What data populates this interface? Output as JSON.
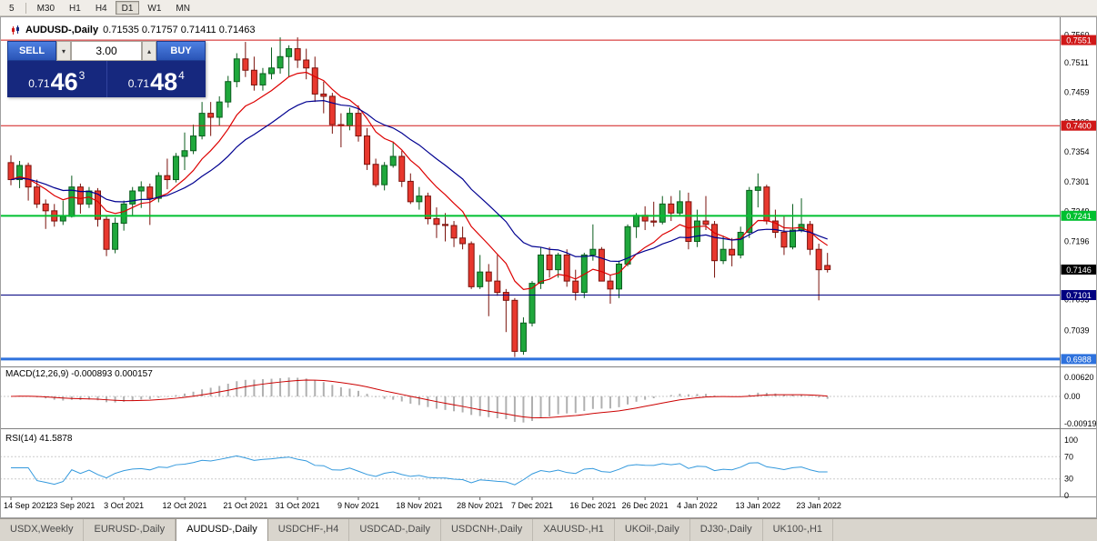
{
  "toolbar": {
    "timeframes": [
      "5",
      "M30",
      "H1",
      "H4",
      "D1",
      "W1",
      "MN"
    ],
    "active": "D1"
  },
  "chart_header": {
    "symbol_text": "AUDUSD-,Daily",
    "ohlc_text": "0.71535 0.71757 0.71411 0.71463"
  },
  "trade_panel": {
    "sell_label": "SELL",
    "buy_label": "BUY",
    "volume": "3.00",
    "icons": {
      "down": "▾",
      "up": "▴"
    },
    "bid": {
      "prefix": "0.71",
      "big": "46",
      "sup": "3"
    },
    "ask": {
      "prefix": "0.71",
      "big": "48",
      "sup": "4"
    }
  },
  "colors": {
    "up": "#1fa83c",
    "up_edge": "#0b5d1e",
    "down": "#e8382e",
    "down_edge": "#7a120c",
    "ma_fast": "#dd0000",
    "ma_slow": "#000090",
    "macd_hist": "#b0b0b0",
    "macd_signal": "#cc0000",
    "rsi_line": "#3399dd",
    "panel_navy": "#16287e",
    "button_blue": "#2a54b6"
  },
  "chart_data": {
    "type": "candlestick",
    "symbol": "AUDUSD-",
    "timeframe": "Daily",
    "last_ohlc": {
      "open": 0.71535,
      "high": 0.71757,
      "low": 0.71411,
      "close": 0.71463
    },
    "y_range": [
      0.6977,
      0.7577
    ],
    "current_price": {
      "label": "0.7146",
      "value": 0.71463,
      "color": "#000000"
    },
    "levels": [
      {
        "label": "0.7551",
        "value": 0.75512,
        "color": "#d01818",
        "width": 1
      },
      {
        "label": "0.7400",
        "value": 0.74002,
        "color": "#d01818",
        "width": 1
      },
      {
        "label": "0.7241",
        "value": 0.72412,
        "color": "#00c030",
        "width": 2
      },
      {
        "label": "0.7101",
        "value": 0.71013,
        "color": "#000080",
        "width": 1
      },
      {
        "label": "0.6988",
        "value": 0.69884,
        "color": "#2e72dd",
        "width": 3
      }
    ],
    "y_ticks": [
      {
        "label": "0.7560",
        "value": 0.756
      },
      {
        "label": "0.7511",
        "value": 0.7511
      },
      {
        "label": "0.7459",
        "value": 0.7459
      },
      {
        "label": "0.7406",
        "value": 0.7406
      },
      {
        "label": "0.7354",
        "value": 0.7354
      },
      {
        "label": "0.7301",
        "value": 0.7301
      },
      {
        "label": "0.7249",
        "value": 0.7249
      },
      {
        "label": "0.7196",
        "value": 0.7196
      },
      {
        "label": "0.7144",
        "value": 0.7144
      },
      {
        "label": "0.7093",
        "value": 0.7093
      },
      {
        "label": "0.7039",
        "value": 0.7039
      },
      {
        "label": "0.6986",
        "value": 0.6986
      }
    ],
    "x_labels": [
      {
        "text": "14 Sep 2021",
        "i": 0
      },
      {
        "text": "23 Sep 2021",
        "i": 7
      },
      {
        "text": "3 Oct 2021",
        "i": 13
      },
      {
        "text": "12 Oct 2021",
        "i": 20
      },
      {
        "text": "21 Oct 2021",
        "i": 27
      },
      {
        "text": "31 Oct 2021",
        "i": 33
      },
      {
        "text": "9 Nov 2021",
        "i": 40
      },
      {
        "text": "18 Nov 2021",
        "i": 47
      },
      {
        "text": "28 Nov 2021",
        "i": 54
      },
      {
        "text": "7 Dec 2021",
        "i": 60
      },
      {
        "text": "16 Dec 2021",
        "i": 67
      },
      {
        "text": "26 Dec 2021",
        "i": 73
      },
      {
        "text": "4 Jan 2022",
        "i": 79
      },
      {
        "text": "13 Jan 2022",
        "i": 86
      },
      {
        "text": "23 Jan 2022",
        "i": 93
      }
    ],
    "indicators": {
      "macd": {
        "label": "MACD(12,26,9) -0.000893 0.000157",
        "axis": [
          {
            "label": "0.00620",
            "value": 0.0062
          },
          {
            "label": "0.00",
            "value": 0
          },
          {
            "label": "-0.00919",
            "value": -0.00919
          }
        ]
      },
      "rsi": {
        "label": "RSI(14) 41.5878",
        "value": 41.5878,
        "axis": [
          {
            "label": "100",
            "value": 100
          },
          {
            "label": "70",
            "value": 70
          },
          {
            "label": "30",
            "value": 30
          },
          {
            "label": "0",
            "value": 0
          }
        ],
        "levels": [
          70,
          30
        ]
      }
    },
    "candles": [
      [
        0.7335,
        0.7348,
        0.7295,
        0.7305
      ],
      [
        0.7305,
        0.7338,
        0.729,
        0.733
      ],
      [
        0.733,
        0.7335,
        0.7268,
        0.7292
      ],
      [
        0.7292,
        0.7305,
        0.7255,
        0.7262
      ],
      [
        0.7262,
        0.727,
        0.7218,
        0.725
      ],
      [
        0.725,
        0.7262,
        0.7222,
        0.7232
      ],
      [
        0.7232,
        0.7268,
        0.7225,
        0.724
      ],
      [
        0.724,
        0.7312,
        0.7238,
        0.7292
      ],
      [
        0.7292,
        0.7298,
        0.7245,
        0.7262
      ],
      [
        0.7262,
        0.7292,
        0.7255,
        0.7285
      ],
      [
        0.7285,
        0.729,
        0.7222,
        0.7235
      ],
      [
        0.7235,
        0.7242,
        0.717,
        0.7182
      ],
      [
        0.7182,
        0.7238,
        0.7175,
        0.7228
      ],
      [
        0.7228,
        0.7268,
        0.7215,
        0.7262
      ],
      [
        0.7262,
        0.7292,
        0.724,
        0.7285
      ],
      [
        0.7285,
        0.7302,
        0.7255,
        0.7292
      ],
      [
        0.7292,
        0.7298,
        0.7225,
        0.7272
      ],
      [
        0.7272,
        0.7318,
        0.7265,
        0.7312
      ],
      [
        0.7312,
        0.7342,
        0.7288,
        0.7305
      ],
      [
        0.7305,
        0.7352,
        0.73,
        0.7346
      ],
      [
        0.7346,
        0.7388,
        0.7322,
        0.7356
      ],
      [
        0.7356,
        0.7402,
        0.735,
        0.7382
      ],
      [
        0.7382,
        0.7442,
        0.7376,
        0.7422
      ],
      [
        0.7422,
        0.7442,
        0.7382,
        0.7415
      ],
      [
        0.7415,
        0.7452,
        0.74,
        0.7442
      ],
      [
        0.7442,
        0.7488,
        0.7432,
        0.7478
      ],
      [
        0.7478,
        0.7528,
        0.7468,
        0.7518
      ],
      [
        0.7518,
        0.7548,
        0.7486,
        0.7498
      ],
      [
        0.7498,
        0.7522,
        0.7462,
        0.7472
      ],
      [
        0.7472,
        0.7502,
        0.7462,
        0.7492
      ],
      [
        0.7492,
        0.7538,
        0.7482,
        0.7502
      ],
      [
        0.7502,
        0.7556,
        0.7492,
        0.7522
      ],
      [
        0.7522,
        0.7542,
        0.7486,
        0.7536
      ],
      [
        0.7536,
        0.7556,
        0.7502,
        0.7516
      ],
      [
        0.7516,
        0.7536,
        0.7482,
        0.7502
      ],
      [
        0.7502,
        0.7522,
        0.7442,
        0.7456
      ],
      [
        0.7456,
        0.7478,
        0.7422,
        0.7452
      ],
      [
        0.7452,
        0.7458,
        0.7386,
        0.7402
      ],
      [
        0.7402,
        0.7422,
        0.7362,
        0.74
      ],
      [
        0.74,
        0.7432,
        0.7392,
        0.7422
      ],
      [
        0.7422,
        0.7436,
        0.7372,
        0.7382
      ],
      [
        0.7382,
        0.7396,
        0.7322,
        0.7332
      ],
      [
        0.7332,
        0.7342,
        0.7292,
        0.7296
      ],
      [
        0.7296,
        0.7336,
        0.7286,
        0.733
      ],
      [
        0.733,
        0.7372,
        0.7326,
        0.7346
      ],
      [
        0.7346,
        0.7356,
        0.7292,
        0.7302
      ],
      [
        0.7302,
        0.7316,
        0.7262,
        0.7266
      ],
      [
        0.7266,
        0.7292,
        0.7252,
        0.7276
      ],
      [
        0.7276,
        0.7282,
        0.7226,
        0.7236
      ],
      [
        0.7236,
        0.7256,
        0.7202,
        0.7226
      ],
      [
        0.7226,
        0.7246,
        0.7196,
        0.7224
      ],
      [
        0.7224,
        0.7232,
        0.7186,
        0.7202
      ],
      [
        0.7202,
        0.7222,
        0.7182,
        0.7192
      ],
      [
        0.7192,
        0.7196,
        0.7112,
        0.7116
      ],
      [
        0.7116,
        0.7172,
        0.7112,
        0.7142
      ],
      [
        0.7142,
        0.7156,
        0.7064,
        0.7126
      ],
      [
        0.7126,
        0.7172,
        0.71,
        0.7106
      ],
      [
        0.7106,
        0.7112,
        0.7036,
        0.7092
      ],
      [
        0.7092,
        0.7096,
        0.6992,
        0.7002
      ],
      [
        0.7002,
        0.7062,
        0.6996,
        0.7052
      ],
      [
        0.7052,
        0.7126,
        0.7046,
        0.7122
      ],
      [
        0.7122,
        0.7186,
        0.7112,
        0.7172
      ],
      [
        0.7172,
        0.7186,
        0.7132,
        0.7146
      ],
      [
        0.7146,
        0.7176,
        0.7132,
        0.7172
      ],
      [
        0.7172,
        0.7182,
        0.7116,
        0.7126
      ],
      [
        0.7126,
        0.7146,
        0.7092,
        0.7106
      ],
      [
        0.7106,
        0.7176,
        0.7096,
        0.7172
      ],
      [
        0.7172,
        0.7226,
        0.7162,
        0.7182
      ],
      [
        0.7182,
        0.7186,
        0.7126,
        0.7126
      ],
      [
        0.7126,
        0.7136,
        0.7086,
        0.7112
      ],
      [
        0.7112,
        0.7162,
        0.7096,
        0.7156
      ],
      [
        0.7156,
        0.7226,
        0.7152,
        0.7222
      ],
      [
        0.7222,
        0.7246,
        0.7202,
        0.7242
      ],
      [
        0.7242,
        0.7258,
        0.7216,
        0.7232
      ],
      [
        0.7232,
        0.7266,
        0.7222,
        0.723
      ],
      [
        0.723,
        0.7276,
        0.7226,
        0.7262
      ],
      [
        0.7262,
        0.7276,
        0.7232,
        0.7246
      ],
      [
        0.7246,
        0.7286,
        0.7242,
        0.7266
      ],
      [
        0.7266,
        0.7282,
        0.7182,
        0.7196
      ],
      [
        0.7196,
        0.7252,
        0.7186,
        0.7232
      ],
      [
        0.7232,
        0.7276,
        0.7216,
        0.7226
      ],
      [
        0.7226,
        0.7232,
        0.7132,
        0.7162
      ],
      [
        0.7162,
        0.7206,
        0.7156,
        0.7182
      ],
      [
        0.7182,
        0.7202,
        0.7152,
        0.7172
      ],
      [
        0.7172,
        0.7222,
        0.7166,
        0.7212
      ],
      [
        0.7212,
        0.7292,
        0.7202,
        0.7286
      ],
      [
        0.7286,
        0.7316,
        0.7256,
        0.7292
      ],
      [
        0.7292,
        0.7296,
        0.7226,
        0.7232
      ],
      [
        0.7232,
        0.7252,
        0.7202,
        0.7212
      ],
      [
        0.7212,
        0.7242,
        0.7172,
        0.7186
      ],
      [
        0.7186,
        0.7262,
        0.7182,
        0.7216
      ],
      [
        0.7216,
        0.7272,
        0.7212,
        0.7226
      ],
      [
        0.7226,
        0.7232,
        0.7172,
        0.7182
      ],
      [
        0.7182,
        0.7192,
        0.7092,
        0.7146
      ],
      [
        0.71535,
        0.71757,
        0.71411,
        0.71463
      ]
    ]
  },
  "tabs": [
    "USDX,Weekly",
    "EURUSD-,Daily",
    "AUDUSD-,Daily",
    "USDCHF-,H4",
    "USDCAD-,Daily",
    "USDCNH-,Daily",
    "XAUUSD-,H1",
    "UKOil-,Daily",
    "DJ30-,Daily",
    "UK100-,H1"
  ],
  "active_tab": "AUDUSD-,Daily"
}
